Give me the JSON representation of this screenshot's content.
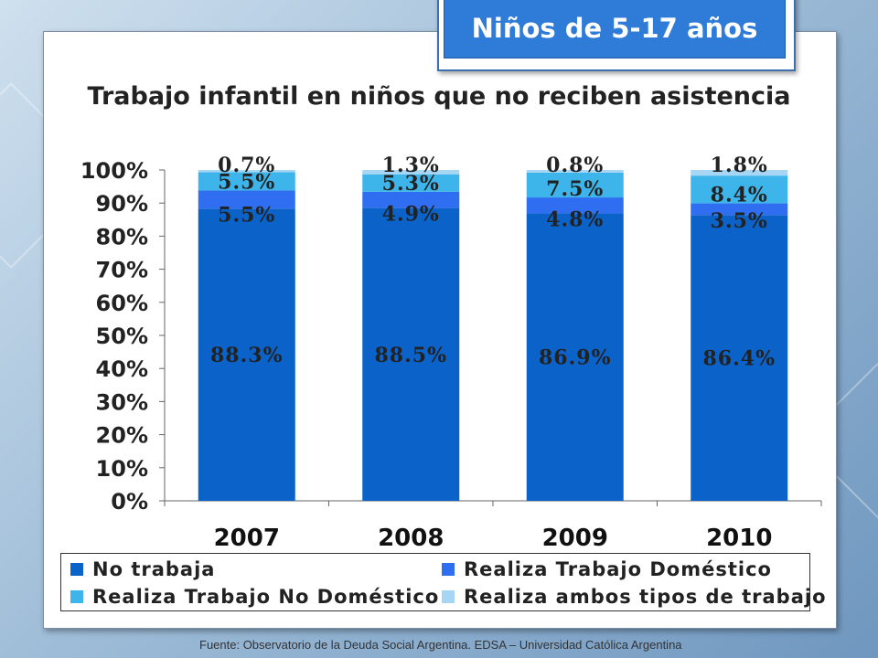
{
  "badge": {
    "text": "Niños de 5-17 años"
  },
  "source": "Fuente: Observatorio de la Deuda Social Argentina. EDSA – Universidad Católica Argentina",
  "chart_data": {
    "type": "bar",
    "stacked": true,
    "title": "Trabajo infantil en niños que no reciben asistencia",
    "categories": [
      "2007",
      "2008",
      "2009",
      "2010"
    ],
    "y_ticks": [
      "0%",
      "10%",
      "20%",
      "30%",
      "40%",
      "50%",
      "60%",
      "70%",
      "80%",
      "90%",
      "100%"
    ],
    "ylim": [
      0,
      100
    ],
    "grid": false,
    "legend_position": "bottom",
    "series": [
      {
        "name": "No trabaja",
        "color": "#0b63c9",
        "values": [
          88.3,
          88.5,
          86.9,
          86.4
        ],
        "labels": [
          "88.3%",
          "88.5%",
          "86.9%",
          "86.4%"
        ]
      },
      {
        "name": "Realiza Trabajo Doméstico",
        "color": "#2f6ef0",
        "values": [
          5.5,
          4.9,
          4.8,
          3.5
        ],
        "labels": [
          "5.5%",
          "4.9%",
          "4.8%",
          "3.5%"
        ]
      },
      {
        "name": "Realiza Trabajo No Doméstico",
        "color": "#3db5ea",
        "values": [
          5.5,
          5.3,
          7.5,
          8.4
        ],
        "labels": [
          "5.5%",
          "5.3%",
          "7.5%",
          "8.4%"
        ]
      },
      {
        "name": "Realiza ambos tipos de trabajo",
        "color": "#a6d6f4",
        "values": [
          0.7,
          1.3,
          0.8,
          1.8
        ],
        "labels": [
          "0.7%",
          "1.3%",
          "0.8%",
          "1.8%"
        ]
      }
    ]
  }
}
